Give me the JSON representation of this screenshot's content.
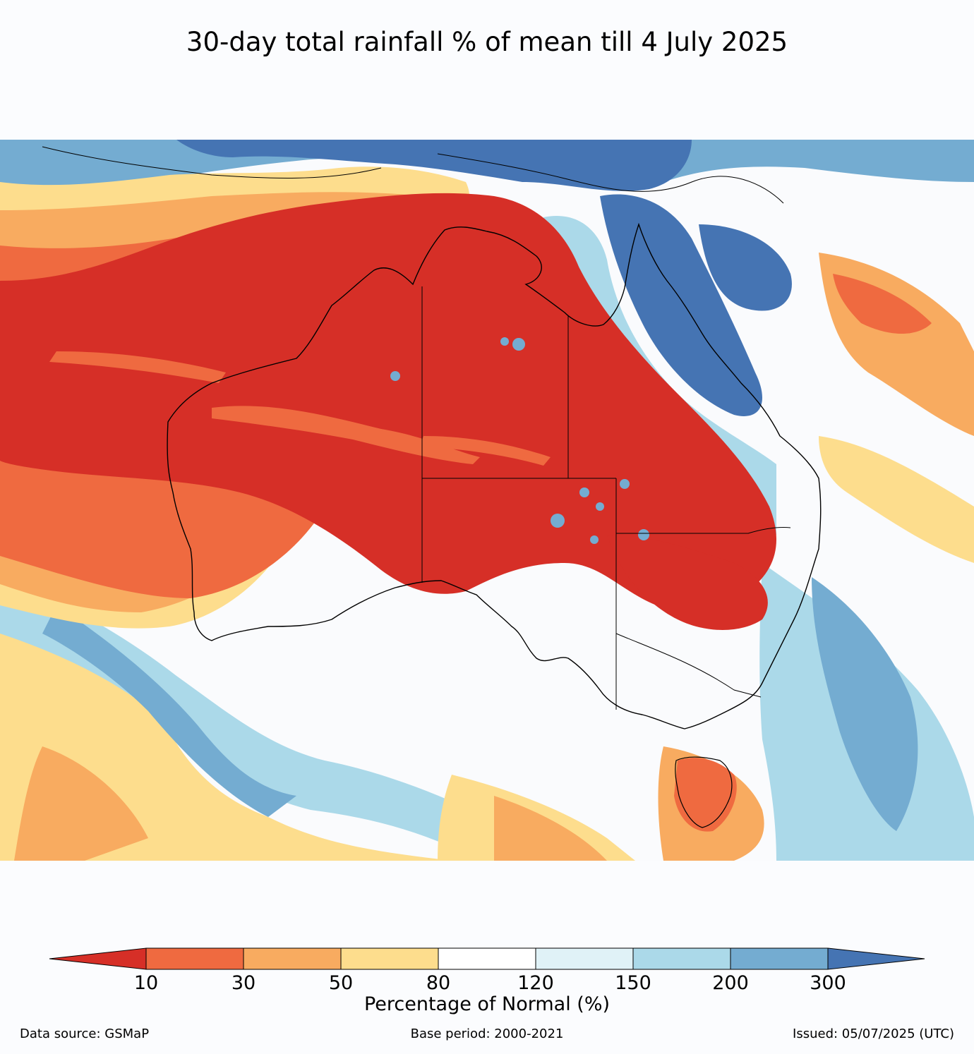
{
  "title": "30-day total rainfall % of mean till 4 July 2025",
  "colorbar": {
    "label": "Percentage of Normal (%)",
    "ticks": [
      "10",
      "30",
      "50",
      "80",
      "120",
      "150",
      "200",
      "300"
    ],
    "colors": [
      "#d62f27",
      "#ef6a40",
      "#f8ab60",
      "#fddd8d",
      "#ffffff",
      "#e0f2f7",
      "#abd9e9",
      "#74acd1",
      "#4574b3"
    ]
  },
  "footer": {
    "source": "Data source: GSMaP",
    "base_period": "Base period: 2000-2021",
    "issued": "Issued: 05/07/2025 (UTC)"
  }
}
